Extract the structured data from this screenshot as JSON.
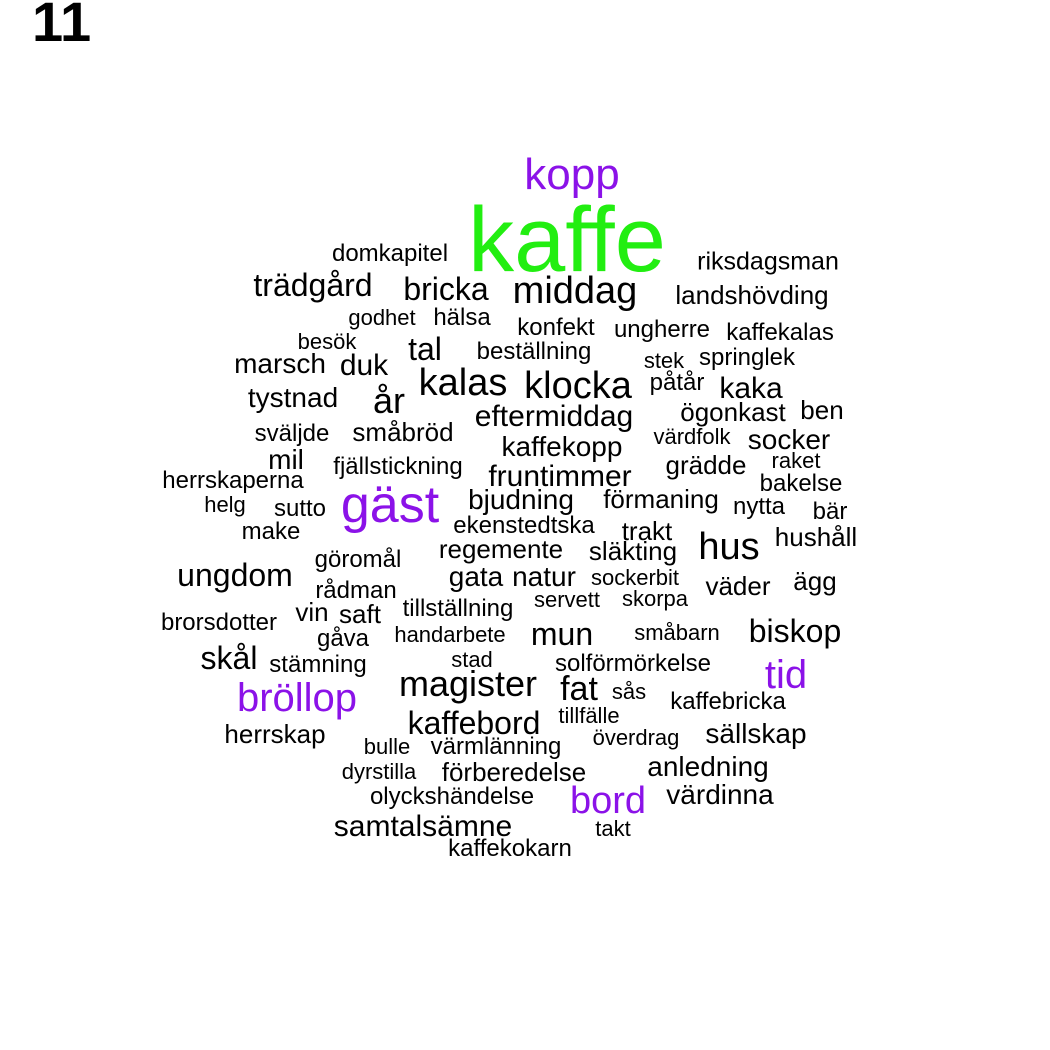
{
  "panel_number": "11",
  "colors": {
    "default": "#000000",
    "purple": "#8b12e8",
    "green": "#22ee11"
  },
  "words": [
    {
      "text": "kaffe",
      "color": "green"
    },
    {
      "text": "kopp",
      "color": "purple"
    },
    {
      "text": "gäst",
      "color": "purple"
    },
    {
      "text": "bröllop",
      "color": "purple"
    },
    {
      "text": "tid",
      "color": "purple"
    },
    {
      "text": "bord",
      "color": "purple"
    },
    {
      "text": "domkapitel"
    },
    {
      "text": "riksdagsman"
    },
    {
      "text": "trädgård"
    },
    {
      "text": "bricka"
    },
    {
      "text": "middag"
    },
    {
      "text": "landshövding"
    },
    {
      "text": "godhet"
    },
    {
      "text": "hälsa"
    },
    {
      "text": "konfekt"
    },
    {
      "text": "ungherre"
    },
    {
      "text": "kaffekalas"
    },
    {
      "text": "besök"
    },
    {
      "text": "tal"
    },
    {
      "text": "beställning"
    },
    {
      "text": "marsch"
    },
    {
      "text": "duk"
    },
    {
      "text": "stek"
    },
    {
      "text": "springlek"
    },
    {
      "text": "kalas"
    },
    {
      "text": "klocka"
    },
    {
      "text": "påtår"
    },
    {
      "text": "kaka"
    },
    {
      "text": "tystnad"
    },
    {
      "text": "år"
    },
    {
      "text": "eftermiddag"
    },
    {
      "text": "ögonkast"
    },
    {
      "text": "ben"
    },
    {
      "text": "sväljde"
    },
    {
      "text": "småbröd"
    },
    {
      "text": "kaffekopp"
    },
    {
      "text": "värdfolk"
    },
    {
      "text": "socker"
    },
    {
      "text": "mil"
    },
    {
      "text": "fjällstickning"
    },
    {
      "text": "grädde"
    },
    {
      "text": "raket"
    },
    {
      "text": "herrskaperna"
    },
    {
      "text": "fruntimmer"
    },
    {
      "text": "bakelse"
    },
    {
      "text": "helg"
    },
    {
      "text": "sutto"
    },
    {
      "text": "bjudning"
    },
    {
      "text": "förmaning"
    },
    {
      "text": "nytta"
    },
    {
      "text": "bär"
    },
    {
      "text": "make"
    },
    {
      "text": "ekenstedtska"
    },
    {
      "text": "trakt"
    },
    {
      "text": "hushåll"
    },
    {
      "text": "regemente"
    },
    {
      "text": "släkting"
    },
    {
      "text": "hus"
    },
    {
      "text": "göromål"
    },
    {
      "text": "ungdom"
    },
    {
      "text": "gata"
    },
    {
      "text": "natur"
    },
    {
      "text": "sockerbit"
    },
    {
      "text": "väder"
    },
    {
      "text": "ägg"
    },
    {
      "text": "rådman"
    },
    {
      "text": "servett"
    },
    {
      "text": "skorpa"
    },
    {
      "text": "vin"
    },
    {
      "text": "saft"
    },
    {
      "text": "tillställning"
    },
    {
      "text": "brorsdotter"
    },
    {
      "text": "mun"
    },
    {
      "text": "småbarn"
    },
    {
      "text": "biskop"
    },
    {
      "text": "gåva"
    },
    {
      "text": "handarbete"
    },
    {
      "text": "skål"
    },
    {
      "text": "stämning"
    },
    {
      "text": "stad"
    },
    {
      "text": "solförmörkelse"
    },
    {
      "text": "magister"
    },
    {
      "text": "fat"
    },
    {
      "text": "sås"
    },
    {
      "text": "kaffebricka"
    },
    {
      "text": "kaffebord"
    },
    {
      "text": "tillfälle"
    },
    {
      "text": "herrskap"
    },
    {
      "text": "överdrag"
    },
    {
      "text": "sällskap"
    },
    {
      "text": "bulle"
    },
    {
      "text": "värmlänning"
    },
    {
      "text": "anledning"
    },
    {
      "text": "dyrstilla"
    },
    {
      "text": "förberedelse"
    },
    {
      "text": "värdinna"
    },
    {
      "text": "olyckshändelse"
    },
    {
      "text": "samtalsämne"
    },
    {
      "text": "takt"
    },
    {
      "text": "kaffekokarn"
    }
  ]
}
